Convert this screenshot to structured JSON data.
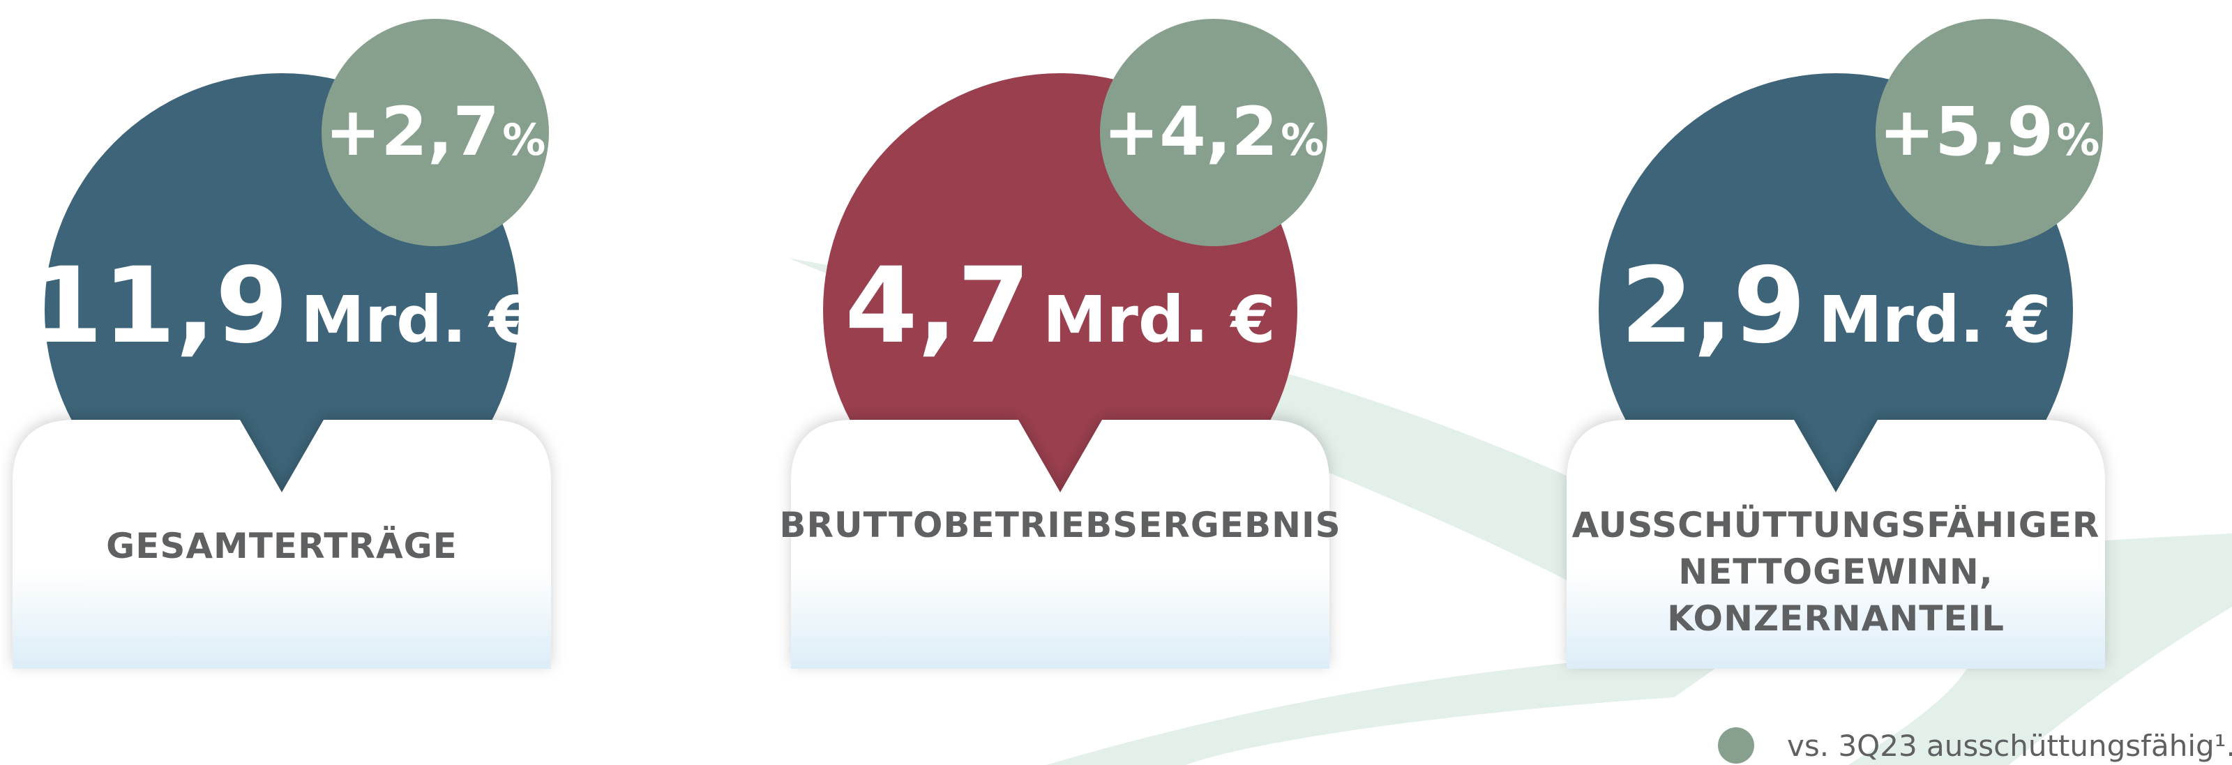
{
  "cards": [
    {
      "value": "11,9",
      "unit": "Mrd. €",
      "change": "+2,7",
      "change_unit": "%",
      "label": [
        "GESAMTERTRÄGE"
      ]
    },
    {
      "value": "4,7",
      "unit": "Mrd. €",
      "change": "+4,2",
      "change_unit": "%",
      "label": [
        "BRUTTOBETRIEBSERGEBNIS"
      ]
    },
    {
      "value": "2,9",
      "unit": "Mrd. €",
      "change": "+5,9",
      "change_unit": "%",
      "label": [
        "AUSSCHÜTTUNGSFÄHIGER",
        "NETTOGEWINN,",
        "KONZERNANTEIL"
      ]
    }
  ],
  "footnote": "vs. 3Q23 ausschüttungsfähig¹."
}
